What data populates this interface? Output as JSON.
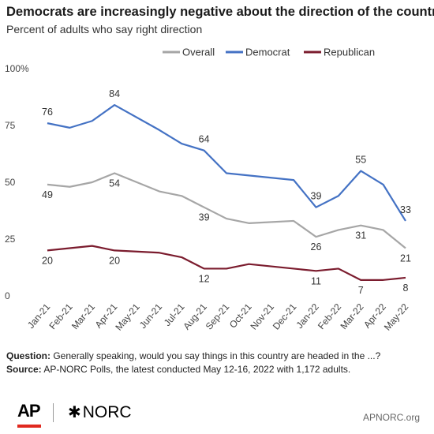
{
  "header": {
    "title": "Democrats are increasingly negative about the direction of  the country",
    "subtitle": "Percent of adults who say right direction"
  },
  "footer": {
    "question_label": "Question:",
    "question_text": " Generally speaking, would you say things in this country are headed in the ...?",
    "source_label": "Source:",
    "source_text": " AP-NORC Polls, the latest conducted May 12-16, 2022 with 1,172 adults.",
    "ap_logo": "AP",
    "norc_logo": "NORC",
    "url": "APNORC.org"
  },
  "chart_data": {
    "type": "line",
    "x": [
      "Jan-21",
      "Feb-21",
      "Mar-21",
      "Apr-21",
      "May-21",
      "Jun-21",
      "Jul-21",
      "Aug-21",
      "Sep-21",
      "Oct-21",
      "Nov-21",
      "Dec-21",
      "Jan-22",
      "Feb-22",
      "Mar-22",
      "Apr-22",
      "May-22"
    ],
    "yticks": [
      "0",
      "25",
      "50",
      "75",
      "100%"
    ],
    "ylim": [
      0,
      100
    ],
    "legend_position": "top-right",
    "grid": false,
    "series": [
      {
        "name": "Overall",
        "color": "#a6a6a6",
        "values": [
          49,
          48,
          50,
          54,
          null,
          46,
          44,
          39,
          34,
          32,
          null,
          33,
          26,
          29,
          31,
          29,
          21
        ],
        "labels": [
          {
            "index": 0,
            "text": "49",
            "pos": "below"
          },
          {
            "index": 3,
            "text": "54",
            "pos": "below"
          },
          {
            "index": 7,
            "text": "39",
            "pos": "below"
          },
          {
            "index": 12,
            "text": "26",
            "pos": "below"
          },
          {
            "index": 14,
            "text": "31",
            "pos": "below"
          },
          {
            "index": 16,
            "text": "21",
            "pos": "below"
          }
        ]
      },
      {
        "name": "Democrat",
        "color": "#4472c4",
        "values": [
          76,
          74,
          77,
          84,
          null,
          73,
          67,
          64,
          54,
          53,
          null,
          51,
          39,
          44,
          55,
          49,
          33
        ],
        "labels": [
          {
            "index": 0,
            "text": "76",
            "pos": "above"
          },
          {
            "index": 3,
            "text": "84",
            "pos": "above"
          },
          {
            "index": 7,
            "text": "64",
            "pos": "above"
          },
          {
            "index": 12,
            "text": "39",
            "pos": "above"
          },
          {
            "index": 14,
            "text": "55",
            "pos": "above"
          },
          {
            "index": 16,
            "text": "33",
            "pos": "above"
          }
        ]
      },
      {
        "name": "Republican",
        "color": "#7b1c2e",
        "values": [
          20,
          21,
          22,
          20,
          null,
          19,
          17,
          12,
          12,
          14,
          null,
          12,
          11,
          12,
          7,
          7,
          8
        ],
        "labels": [
          {
            "index": 0,
            "text": "20",
            "pos": "below"
          },
          {
            "index": 3,
            "text": "20",
            "pos": "below"
          },
          {
            "index": 7,
            "text": "12",
            "pos": "below"
          },
          {
            "index": 12,
            "text": "11",
            "pos": "below"
          },
          {
            "index": 14,
            "text": "7",
            "pos": "below"
          },
          {
            "index": 16,
            "text": "8",
            "pos": "below"
          }
        ]
      }
    ]
  }
}
